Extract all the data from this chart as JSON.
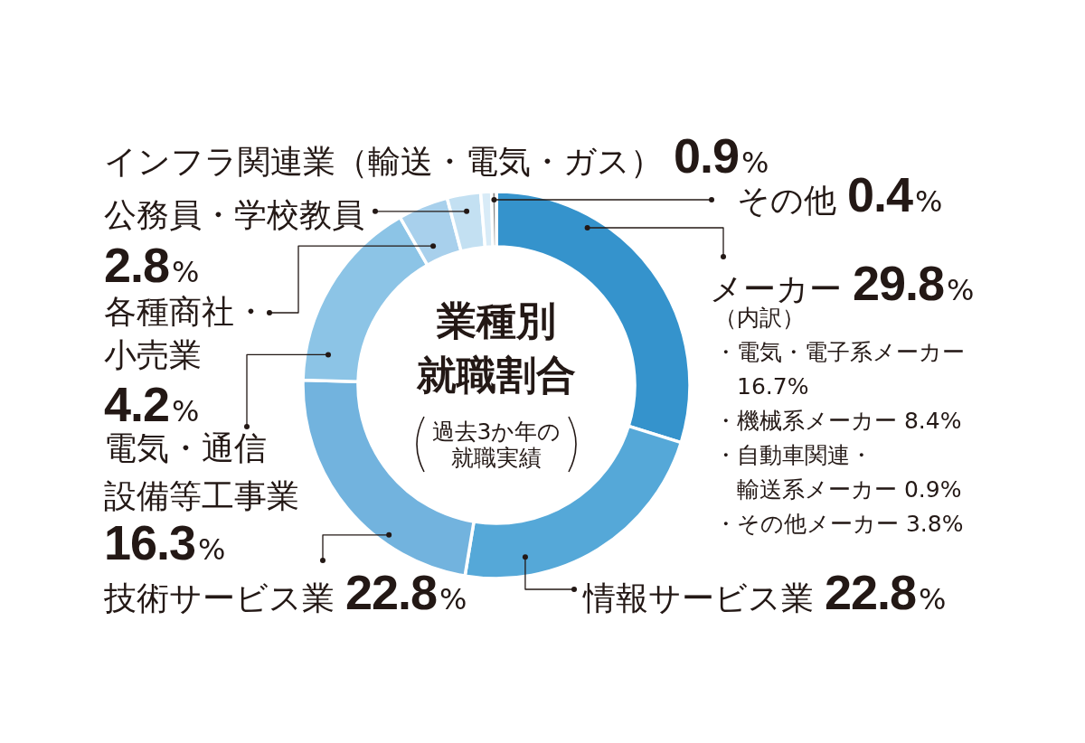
{
  "chart_data": {
    "type": "donut",
    "title": "業種別就職割合",
    "subtitle": "過去3か年の就職実績",
    "categories": [
      "メーカー",
      "情報サービス業",
      "技術サービス業",
      "電気・通信設備等工事業",
      "各種商社・小売業",
      "公務員・学校教員",
      "インフラ関連業（輸送・電気・ガス）",
      "その他"
    ],
    "values": [
      29.8,
      22.8,
      22.8,
      16.3,
      4.2,
      2.8,
      0.9,
      0.4
    ],
    "colors": [
      "#3593cc",
      "#55a8d8",
      "#72b3de",
      "#8cc4e6",
      "#a8d0ec",
      "#c3e0f2",
      "#d8ebf7",
      "#8a8a8a"
    ],
    "value_labels": [
      "29.8%",
      "22.8%",
      "22.8%",
      "16.3%",
      "4.2%",
      "2.8%",
      "0.9%",
      "0.4%"
    ],
    "annotations": [
      "（内訳）",
      "・電気・電子系メーカー 16.7%",
      "・機械系メーカー 8.4%",
      "・自動車関連・輸送系メーカー 0.9%",
      "・その他メーカー 3.8%"
    ]
  }
}
